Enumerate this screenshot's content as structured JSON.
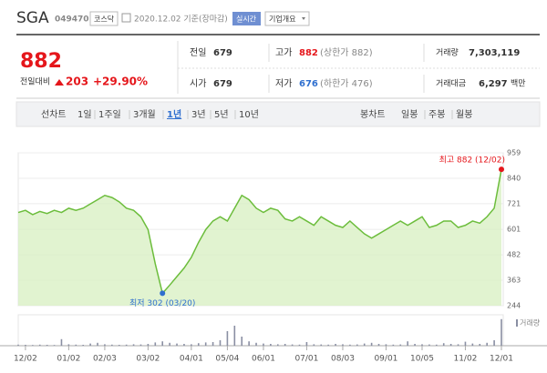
{
  "header": {
    "name": "SGA",
    "code": "049470",
    "market": "코스닥",
    "date": "2020.12.02 기준(장마감)",
    "realtime": "실시간",
    "overview": "기업개요"
  },
  "quote": {
    "price": "882",
    "change_label": "전일대비",
    "change": "203",
    "change_pct": "+29.90%",
    "rows": [
      [
        {
          "label": "전일",
          "value": "679"
        },
        {
          "label": "고가",
          "value": "882",
          "note": "(상한가 882)"
        },
        {
          "label": "거래량",
          "value": "7,303,119"
        }
      ],
      [
        {
          "label": "시가",
          "value": "679"
        },
        {
          "label": "저가",
          "value": "676",
          "note": "(하한가 476)"
        },
        {
          "label": "거래대금",
          "value": "6,297",
          "unit": "백만"
        }
      ]
    ]
  },
  "tabs": {
    "line_label": "선차트",
    "line_periods": [
      "1일",
      "1주일",
      "3개월",
      "1년",
      "3년",
      "5년",
      "10년"
    ],
    "active": "1년",
    "candle_label": "봉차트",
    "candle_periods": [
      "일봉",
      "주봉",
      "월봉"
    ]
  },
  "chart_data": {
    "type": "area",
    "color": "#6cbd3c",
    "fill": "#d9f0c4",
    "categories": [
      null,
      "12/02",
      null,
      null,
      null,
      null,
      null,
      "01/02",
      null,
      null,
      null,
      null,
      "02/03",
      null,
      null,
      null,
      null,
      null,
      "03/02",
      null,
      null,
      null,
      null,
      null,
      "04/01",
      null,
      null,
      null,
      null,
      "05/04",
      null,
      null,
      null,
      null,
      "06/01",
      null,
      null,
      null,
      null,
      null,
      "07/01",
      null,
      null,
      null,
      null,
      "08/03",
      null,
      null,
      null,
      null,
      null,
      "09/01",
      null,
      null,
      null,
      null,
      "10/05",
      null,
      null,
      null,
      null,
      null,
      "11/02",
      null,
      null,
      null,
      null,
      "12/01"
    ],
    "values": [
      680,
      690,
      670,
      685,
      675,
      690,
      680,
      700,
      690,
      700,
      720,
      740,
      760,
      750,
      730,
      700,
      690,
      660,
      600,
      440,
      302,
      340,
      380,
      420,
      470,
      540,
      600,
      640,
      660,
      640,
      700,
      760,
      740,
      700,
      680,
      700,
      690,
      650,
      640,
      660,
      640,
      620,
      660,
      640,
      620,
      610,
      640,
      610,
      580,
      560,
      580,
      600,
      620,
      640,
      620,
      640,
      660,
      610,
      620,
      640,
      640,
      610,
      620,
      640,
      630,
      660,
      700,
      882
    ],
    "ylim": [
      244,
      959
    ],
    "yticks": [
      959,
      840,
      721,
      601,
      482,
      363,
      244
    ],
    "grid": true,
    "max_label": "최고 882 (12/02)",
    "max_color": "#e5161b",
    "min_label": "최저 302 (03/20)",
    "min_color": "#2f6fcf",
    "volume_label": "거래량",
    "volume_color": "#8a8fa3",
    "volume_values": [
      300000,
      250000,
      200000,
      300000,
      250000,
      200000,
      1800000,
      400000,
      300000,
      250000,
      600000,
      800000,
      400000,
      300000,
      250000,
      300000,
      400000,
      350000,
      500000,
      900000,
      1200000,
      800000,
      600000,
      500000,
      400000,
      700000,
      900000,
      1000000,
      1500000,
      4000000,
      5500000,
      2500000,
      1200000,
      800000,
      600000,
      500000,
      400000,
      500000,
      350000,
      300000,
      1000000,
      400000,
      350000,
      300000,
      500000,
      400000,
      300000,
      350000,
      600000,
      800000,
      500000,
      400000,
      300000,
      350000,
      1200000,
      500000,
      400000,
      350000,
      300000,
      700000,
      500000,
      400000,
      1100000,
      600000,
      500000,
      800000,
      1500000,
      7303119
    ],
    "volume_ylim": [
      0,
      7500000
    ]
  }
}
